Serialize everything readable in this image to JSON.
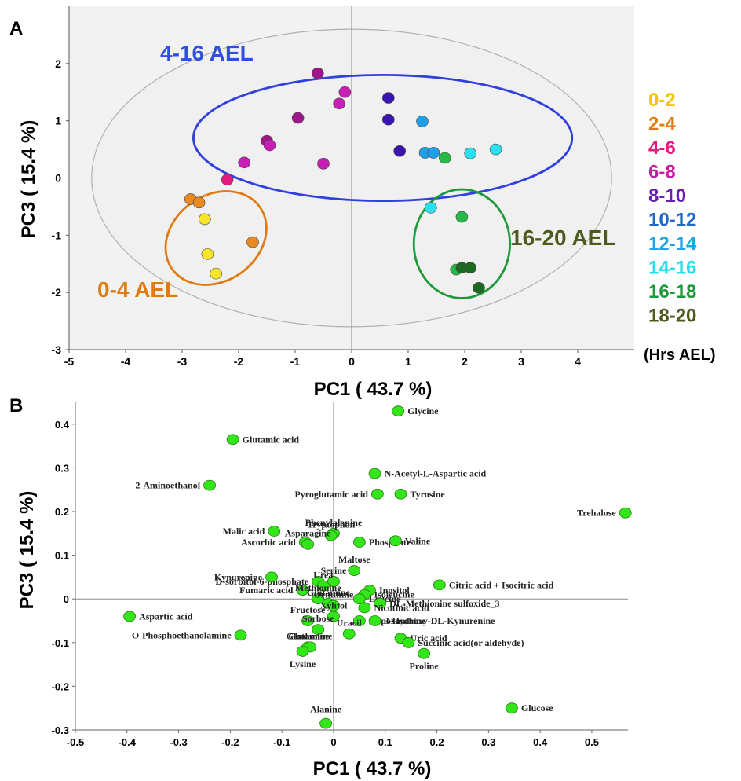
{
  "chart_data": [
    {
      "type": "scatter",
      "panel_label": "A",
      "xlabel": "PC1 ( 43.7 %)",
      "ylabel": "PC3 ( 15.4 %)",
      "xlim": [
        -5,
        5
      ],
      "ylim": [
        -3,
        3
      ],
      "x_ticks": [
        "-5",
        "-4",
        "-3",
        "-2",
        "-1",
        "0",
        "1",
        "2",
        "3",
        "4"
      ],
      "y_ticks": [
        "2",
        "1",
        "0",
        "-1",
        "-2",
        "-3"
      ],
      "legend_title": "(Hrs AEL)",
      "legend_position": "right",
      "legend": [
        {
          "label": "0-2",
          "color": "#f5c400"
        },
        {
          "label": "2-4",
          "color": "#e07b10"
        },
        {
          "label": "4-6",
          "color": "#e6197f"
        },
        {
          "label": "6-8",
          "color": "#c81e9e"
        },
        {
          "label": "8-10",
          "color": "#6a1fb0"
        },
        {
          "label": "10-12",
          "color": "#1f68c8"
        },
        {
          "label": "12-14",
          "color": "#1ea7e8"
        },
        {
          "label": "14-16",
          "color": "#22e0f0"
        },
        {
          "label": "16-18",
          "color": "#1c9a3a"
        },
        {
          "label": "18-20",
          "color": "#4d5a1e"
        }
      ],
      "group_labels": [
        {
          "text": "4-16 AEL",
          "color": "#2f4fe0"
        },
        {
          "text": "0-4 AEL",
          "color": "#e07b10"
        },
        {
          "text": "16-20 AEL",
          "color": "#4d5a1e"
        }
      ],
      "ellipses": [
        {
          "name": "confidence",
          "cx": 0,
          "cy": 0,
          "rx": 4.6,
          "ry": 2.6,
          "color": "#b0b0b0",
          "fill": "#f0f0f0"
        },
        {
          "name": "4-16 AEL",
          "cx": 0.55,
          "cy": 0.7,
          "rx": 3.35,
          "ry": 1.1,
          "color": "#2f3fe0"
        },
        {
          "name": "0-4 AEL",
          "cx": -2.4,
          "cy": -1.05,
          "rx": 0.95,
          "ry": 0.75,
          "rotate": 35,
          "color": "#e07b10"
        },
        {
          "name": "16-20 AEL",
          "cx": 1.95,
          "cy": -1.15,
          "rx": 0.85,
          "ry": 0.95,
          "color": "#1c9a3a"
        }
      ],
      "points": [
        {
          "x": -2.85,
          "y": -0.37,
          "color": "#e88a20"
        },
        {
          "x": -2.7,
          "y": -0.43,
          "color": "#e88a20"
        },
        {
          "x": -1.75,
          "y": -1.12,
          "color": "#e88a20"
        },
        {
          "x": -2.6,
          "y": -0.72,
          "color": "#f8e42a"
        },
        {
          "x": -2.55,
          "y": -1.33,
          "color": "#f8e42a"
        },
        {
          "x": -2.4,
          "y": -1.67,
          "color": "#f8e42a"
        },
        {
          "x": -0.6,
          "y": 1.83,
          "color": "#9c188a"
        },
        {
          "x": -0.95,
          "y": 1.05,
          "color": "#9c188a"
        },
        {
          "x": -1.5,
          "y": 0.65,
          "color": "#9c188a"
        },
        {
          "x": -0.12,
          "y": 1.5,
          "color": "#c81eb4"
        },
        {
          "x": -0.22,
          "y": 1.3,
          "color": "#c81eb4"
        },
        {
          "x": -1.45,
          "y": 0.57,
          "color": "#c81eb4"
        },
        {
          "x": -0.5,
          "y": 0.25,
          "color": "#c81eb4"
        },
        {
          "x": -1.9,
          "y": 0.27,
          "color": "#c81eb4"
        },
        {
          "x": -2.2,
          "y": -0.03,
          "color": "#e6197f"
        },
        {
          "x": 0.65,
          "y": 1.4,
          "color": "#3a14b0"
        },
        {
          "x": 0.65,
          "y": 1.02,
          "color": "#3a14b0"
        },
        {
          "x": 0.85,
          "y": 0.47,
          "color": "#3a14b0"
        },
        {
          "x": 1.25,
          "y": 0.99,
          "color": "#1ea0e8"
        },
        {
          "x": 1.3,
          "y": 0.44,
          "color": "#1ea0e8"
        },
        {
          "x": 1.45,
          "y": 0.44,
          "color": "#1ea0e8"
        },
        {
          "x": 2.1,
          "y": 0.43,
          "color": "#2ae0f0"
        },
        {
          "x": 2.55,
          "y": 0.5,
          "color": "#2ae0f0"
        },
        {
          "x": 1.4,
          "y": -0.52,
          "color": "#2ae0f0"
        },
        {
          "x": 1.65,
          "y": 0.35,
          "color": "#28b848"
        },
        {
          "x": 1.95,
          "y": -0.68,
          "color": "#28b848"
        },
        {
          "x": 1.85,
          "y": -1.6,
          "color": "#28b848"
        },
        {
          "x": 1.95,
          "y": -1.57,
          "color": "#1c6a22"
        },
        {
          "x": 2.1,
          "y": -1.57,
          "color": "#1c6a22"
        },
        {
          "x": 2.25,
          "y": -1.92,
          "color": "#1c6a22"
        }
      ]
    },
    {
      "type": "scatter",
      "panel_label": "B",
      "xlabel": "PC1 ( 43.7 %)",
      "ylabel": "PC3 ( 15.4 %)",
      "xlim": [
        -0.5,
        0.57
      ],
      "ylim": [
        -0.3,
        0.45
      ],
      "x_ticks": [
        "-0.5",
        "-0.4",
        "-0.3",
        "-0.2",
        "-0.1",
        "0",
        "0.1",
        "0.2",
        "0.3",
        "0.4",
        "0.5"
      ],
      "y_ticks": [
        "0.4",
        "0.3",
        "0.2",
        "0.1",
        "0",
        "-0.1",
        "-0.2",
        "-0.3"
      ],
      "point_color": "#33e61a",
      "points": [
        {
          "label": "Glycine",
          "x": 0.125,
          "y": 0.43,
          "anchor": "start"
        },
        {
          "label": "Glutamic acid",
          "x": -0.195,
          "y": 0.365,
          "anchor": "start"
        },
        {
          "label": "N-Acetyl-L-Aspartic acid",
          "x": 0.08,
          "y": 0.287,
          "anchor": "start"
        },
        {
          "label": "2-Aminoethanol",
          "x": -0.24,
          "y": 0.26,
          "anchor": "end"
        },
        {
          "label": "Pyroglutamic acid",
          "x": 0.085,
          "y": 0.24,
          "anchor": "end"
        },
        {
          "label": "Tyrosine",
          "x": 0.13,
          "y": 0.24,
          "anchor": "start"
        },
        {
          "label": "Trehalose",
          "x": 0.565,
          "y": 0.197,
          "anchor": "end"
        },
        {
          "label": "Phenylalanine",
          "x": 0.0,
          "y": 0.15,
          "anchor": "mid"
        },
        {
          "label": "Tryptophan",
          "x": -0.005,
          "y": 0.145,
          "anchor": "mid"
        },
        {
          "label": "Malic acid",
          "x": -0.115,
          "y": 0.155,
          "anchor": "end"
        },
        {
          "label": "Ascorbic acid",
          "x": -0.055,
          "y": 0.13,
          "anchor": "end"
        },
        {
          "label": "Phosphate",
          "x": 0.05,
          "y": 0.13,
          "anchor": "start"
        },
        {
          "label": "Valine",
          "x": 0.12,
          "y": 0.133,
          "anchor": "start"
        },
        {
          "label": "Asparagine",
          "x": -0.05,
          "y": 0.125,
          "anchor": "mid"
        },
        {
          "label": "Maltose",
          "x": 0.04,
          "y": 0.065,
          "anchor": "mid"
        },
        {
          "label": "D-sorbitol-6-phosphate",
          "x": -0.03,
          "y": 0.04,
          "anchor": "end"
        },
        {
          "label": "Kynurenine",
          "x": -0.12,
          "y": 0.05,
          "anchor": "end"
        },
        {
          "label": "Serine",
          "x": 0.0,
          "y": 0.04,
          "anchor": "mid"
        },
        {
          "label": "Urea",
          "x": -0.02,
          "y": 0.03,
          "anchor": "mid"
        },
        {
          "label": "Inositol",
          "x": 0.07,
          "y": 0.02,
          "anchor": "start"
        },
        {
          "label": "Isoleucine",
          "x": 0.06,
          "y": 0.01,
          "anchor": "start"
        },
        {
          "label": "Leucine",
          "x": 0.05,
          "y": 0.0,
          "anchor": "start"
        },
        {
          "label": "Citric acid + Isocitric acid",
          "x": 0.205,
          "y": 0.032,
          "anchor": "start"
        },
        {
          "label": "Fumaric acid",
          "x": -0.06,
          "y": 0.02,
          "anchor": "end"
        },
        {
          "label": "Methionine",
          "x": -0.03,
          "y": 0.0,
          "anchor": "mid"
        },
        {
          "label": "Glutamine",
          "x": -0.01,
          "y": -0.01,
          "anchor": "mid"
        },
        {
          "label": "Ornithine",
          "x": 0.0,
          "y": -0.015,
          "anchor": "mid"
        },
        {
          "label": "DL-Methionine sulfoxide_3",
          "x": 0.09,
          "y": -0.01,
          "anchor": "start"
        },
        {
          "label": "Nicotinic acid",
          "x": 0.06,
          "y": -0.02,
          "anchor": "start"
        },
        {
          "label": "Fructose",
          "x": -0.05,
          "y": -0.05,
          "anchor": "mid"
        },
        {
          "label": "Xylitol",
          "x": 0.0,
          "y": -0.04,
          "anchor": "mid"
        },
        {
          "label": "Hypoxanthine",
          "x": 0.05,
          "y": -0.05,
          "anchor": "start"
        },
        {
          "label": "3-Hydroxy-DL-Kynurenine",
          "x": 0.08,
          "y": -0.05,
          "anchor": "start"
        },
        {
          "label": "Sorbose",
          "x": -0.03,
          "y": -0.07,
          "anchor": "mid"
        },
        {
          "label": "Uracil",
          "x": 0.03,
          "y": -0.08,
          "anchor": "mid"
        },
        {
          "label": "Aspartic acid",
          "x": -0.395,
          "y": -0.04,
          "anchor": "start"
        },
        {
          "label": "O-Phosphoethanolamine",
          "x": -0.18,
          "y": -0.083,
          "anchor": "end"
        },
        {
          "label": "Uric acid",
          "x": 0.13,
          "y": -0.09,
          "anchor": "start"
        },
        {
          "label": "Succinic acid(or aldehyde)",
          "x": 0.145,
          "y": -0.1,
          "anchor": "start"
        },
        {
          "label": "Glutamine",
          "x": -0.05,
          "y": -0.11,
          "anchor": "mid"
        },
        {
          "label": "Cholamine",
          "x": -0.045,
          "y": -0.11,
          "anchor": "mid"
        },
        {
          "label": "Lysine",
          "x": -0.06,
          "y": -0.12,
          "anchor": "mid"
        },
        {
          "label": "Proline",
          "x": 0.175,
          "y": -0.125,
          "anchor": "mid"
        },
        {
          "label": "Glucose",
          "x": 0.345,
          "y": -0.25,
          "anchor": "start"
        },
        {
          "label": "Alanine",
          "x": -0.015,
          "y": -0.285,
          "anchor": "mid"
        }
      ]
    }
  ]
}
